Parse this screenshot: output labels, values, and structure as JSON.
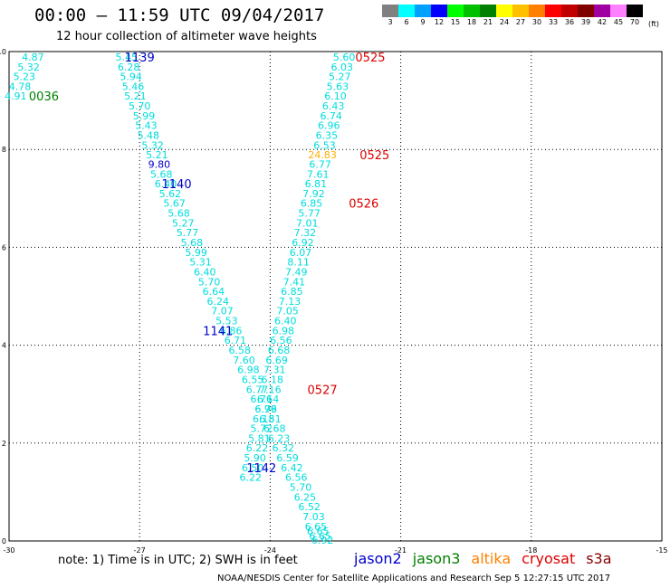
{
  "title": "00:00 – 11:59 UTC 09/04/2017",
  "subtitle": "12 hour collection of altimeter wave heights",
  "colorbar": {
    "unit": "(ft)",
    "cells": [
      {
        "label": "3",
        "color": "#808080"
      },
      {
        "label": "6",
        "color": "#00ffff"
      },
      {
        "label": "9",
        "color": "#00a0ff"
      },
      {
        "label": "12",
        "color": "#0000ff"
      },
      {
        "label": "15",
        "color": "#00ff00"
      },
      {
        "label": "18",
        "color": "#00c000"
      },
      {
        "label": "21",
        "color": "#008000"
      },
      {
        "label": "24",
        "color": "#ffff00"
      },
      {
        "label": "27",
        "color": "#ffc000"
      },
      {
        "label": "30",
        "color": "#ff8000"
      },
      {
        "label": "33",
        "color": "#ff0000"
      },
      {
        "label": "36",
        "color": "#c00000"
      },
      {
        "label": "39",
        "color": "#800000"
      },
      {
        "label": "42",
        "color": "#a000a0"
      },
      {
        "label": "45",
        "color": "#ff80ff"
      },
      {
        "label": "70",
        "color": "#000000"
      }
    ]
  },
  "note": "note: 1) Time is in UTC; 2) SWH is in feet",
  "legend": [
    {
      "name": "jason2",
      "color": "#0000cc"
    },
    {
      "name": "jason3",
      "color": "#008000"
    },
    {
      "name": "altika",
      "color": "#ff8000"
    },
    {
      "name": "cryosat",
      "color": "#dd0000"
    },
    {
      "name": "s3a",
      "color": "#880000"
    }
  ],
  "footer": "NOAA/NESDIS Center for Satellite Applications and Research   Sep  5 12:27:15 UTC 2017",
  "chart_data": {
    "type": "scatter",
    "title": "00:00 – 11:59 UTC 09/04/2017",
    "xlim": [
      -30,
      -15
    ],
    "ylim": [
      0,
      10
    ],
    "xticks": [
      "-30",
      "-27",
      "-24",
      "-21",
      "-18",
      "-15"
    ],
    "yticks": [
      "0",
      "2",
      "4",
      "6",
      "8",
      "10"
    ],
    "grid": true,
    "series": [
      {
        "name": "jason3",
        "color": "#00dddd",
        "points": [
          {
            "x": -29.45,
            "y": 9.89,
            "v": "4.87"
          },
          {
            "x": -29.55,
            "y": 9.69,
            "v": "5.32"
          },
          {
            "x": -29.65,
            "y": 9.49,
            "v": "5.23"
          },
          {
            "x": -29.75,
            "y": 9.29,
            "v": "4.78"
          },
          {
            "x": -29.85,
            "y": 9.09,
            "v": "4.91"
          }
        ]
      },
      {
        "name": "jason2",
        "color": "#00dddd",
        "points": [
          {
            "x": -27.3,
            "y": 9.89,
            "v": "5.45"
          },
          {
            "x": -27.25,
            "y": 9.69,
            "v": "6.28"
          },
          {
            "x": -27.2,
            "y": 9.49,
            "v": "5.94"
          },
          {
            "x": -27.15,
            "y": 9.29,
            "v": "5.46"
          },
          {
            "x": -27.1,
            "y": 9.09,
            "v": "5.21"
          },
          {
            "x": -27.0,
            "y": 8.89,
            "v": "5.70"
          },
          {
            "x": -26.9,
            "y": 8.69,
            "v": "5.99"
          },
          {
            "x": -26.85,
            "y": 8.49,
            "v": "5.43"
          },
          {
            "x": -26.8,
            "y": 8.29,
            "v": "5.48"
          },
          {
            "x": -26.7,
            "y": 8.09,
            "v": "5.32"
          },
          {
            "x": -26.6,
            "y": 7.89,
            "v": "5.21"
          },
          {
            "x": -26.55,
            "y": 7.7,
            "v": "9.80",
            "c": "#0000cc"
          },
          {
            "x": -26.5,
            "y": 7.5,
            "v": "5.68"
          },
          {
            "x": -26.4,
            "y": 7.3,
            "v": "6.40"
          },
          {
            "x": -26.3,
            "y": 7.1,
            "v": "5.62"
          },
          {
            "x": -26.2,
            "y": 6.9,
            "v": "5.67"
          },
          {
            "x": -26.1,
            "y": 6.7,
            "v": "5.68"
          },
          {
            "x": -26.0,
            "y": 6.5,
            "v": "5.27"
          },
          {
            "x": -25.9,
            "y": 6.3,
            "v": "5.77"
          },
          {
            "x": -25.8,
            "y": 6.1,
            "v": "5.68"
          },
          {
            "x": -25.7,
            "y": 5.9,
            "v": "5.99"
          },
          {
            "x": -25.6,
            "y": 5.7,
            "v": "5.31"
          },
          {
            "x": -25.5,
            "y": 5.5,
            "v": "6.40"
          },
          {
            "x": -25.4,
            "y": 5.3,
            "v": "5.70"
          },
          {
            "x": -25.3,
            "y": 5.1,
            "v": "6.64"
          },
          {
            "x": -25.2,
            "y": 4.9,
            "v": "6.24"
          },
          {
            "x": -25.1,
            "y": 4.7,
            "v": "7.07"
          },
          {
            "x": -25.0,
            "y": 4.5,
            "v": "5.53"
          },
          {
            "x": -24.9,
            "y": 4.3,
            "v": "6.86"
          },
          {
            "x": -24.8,
            "y": 4.1,
            "v": "6.71"
          },
          {
            "x": -24.7,
            "y": 3.9,
            "v": "6.58"
          },
          {
            "x": -24.6,
            "y": 3.7,
            "v": "7.60"
          },
          {
            "x": -24.5,
            "y": 3.5,
            "v": "6.98"
          },
          {
            "x": -24.4,
            "y": 3.3,
            "v": "6.55"
          },
          {
            "x": -24.3,
            "y": 3.1,
            "v": "6.77"
          },
          {
            "x": -24.2,
            "y": 2.9,
            "v": "6.76"
          },
          {
            "x": -24.1,
            "y": 2.7,
            "v": "6.76"
          },
          {
            "x": -24.0,
            "y": 2.5,
            "v": "6.51"
          },
          {
            "x": -23.9,
            "y": 2.3,
            "v": "6.68"
          },
          {
            "x": -23.8,
            "y": 2.1,
            "v": "6.23"
          },
          {
            "x": -23.7,
            "y": 1.9,
            "v": "6.32"
          },
          {
            "x": -23.6,
            "y": 1.7,
            "v": "6.59"
          },
          {
            "x": -23.5,
            "y": 1.5,
            "v": "6.42"
          },
          {
            "x": -23.4,
            "y": 1.3,
            "v": "6.56"
          },
          {
            "x": -23.3,
            "y": 1.1,
            "v": "5.70"
          },
          {
            "x": -23.2,
            "y": 0.9,
            "v": "6.25"
          },
          {
            "x": -23.1,
            "y": 0.7,
            "v": "6.52"
          },
          {
            "x": -23.0,
            "y": 0.5,
            "v": "7.03"
          },
          {
            "x": -22.95,
            "y": 0.3,
            "v": "6.65"
          },
          {
            "x": -22.9,
            "y": 0.2,
            "v": "6.65"
          },
          {
            "x": -22.85,
            "y": 0.1,
            "v": "6.65"
          },
          {
            "x": -22.8,
            "y": 0.02,
            "v": "6.92"
          }
        ]
      },
      {
        "name": "cryosat",
        "color": "#00dddd",
        "points": [
          {
            "x": -22.3,
            "y": 9.89,
            "v": "5.60"
          },
          {
            "x": -22.35,
            "y": 9.69,
            "v": "6.03"
          },
          {
            "x": -22.4,
            "y": 9.49,
            "v": "5.27"
          },
          {
            "x": -22.45,
            "y": 9.29,
            "v": "5.63"
          },
          {
            "x": -22.5,
            "y": 9.09,
            "v": "6.10"
          },
          {
            "x": -22.55,
            "y": 8.89,
            "v": "6.43"
          },
          {
            "x": -22.6,
            "y": 8.69,
            "v": "6.74"
          },
          {
            "x": -22.65,
            "y": 8.49,
            "v": "6.96"
          },
          {
            "x": -22.7,
            "y": 8.29,
            "v": "6.35"
          },
          {
            "x": -22.75,
            "y": 8.09,
            "v": "6.53"
          },
          {
            "x": -22.8,
            "y": 7.89,
            "v": "24.83",
            "c": "#ffb000"
          },
          {
            "x": -22.85,
            "y": 7.7,
            "v": "6.77"
          },
          {
            "x": -22.9,
            "y": 7.5,
            "v": "7.61"
          },
          {
            "x": -22.95,
            "y": 7.3,
            "v": "6.81"
          },
          {
            "x": -23.0,
            "y": 7.1,
            "v": "7.92"
          },
          {
            "x": -23.05,
            "y": 6.9,
            "v": "6.85"
          },
          {
            "x": -23.1,
            "y": 6.7,
            "v": "5.77"
          },
          {
            "x": -23.15,
            "y": 6.5,
            "v": "7.01"
          },
          {
            "x": -23.2,
            "y": 6.3,
            "v": "7.32"
          },
          {
            "x": -23.25,
            "y": 6.1,
            "v": "6.92"
          },
          {
            "x": -23.3,
            "y": 5.9,
            "v": "6.07"
          },
          {
            "x": -23.35,
            "y": 5.7,
            "v": "8.11"
          },
          {
            "x": -23.4,
            "y": 5.5,
            "v": "7.49"
          },
          {
            "x": -23.45,
            "y": 5.3,
            "v": "7.41"
          },
          {
            "x": -23.5,
            "y": 5.1,
            "v": "6.85"
          },
          {
            "x": -23.55,
            "y": 4.9,
            "v": "7.13"
          },
          {
            "x": -23.6,
            "y": 4.7,
            "v": "7.05"
          },
          {
            "x": -23.65,
            "y": 4.5,
            "v": "6.40"
          },
          {
            "x": -23.7,
            "y": 4.3,
            "v": "6.98"
          },
          {
            "x": -23.75,
            "y": 4.1,
            "v": "6.56"
          },
          {
            "x": -23.8,
            "y": 3.9,
            "v": "6.68"
          },
          {
            "x": -23.85,
            "y": 3.7,
            "v": "6.69"
          },
          {
            "x": -23.9,
            "y": 3.5,
            "v": "7.31"
          },
          {
            "x": -23.95,
            "y": 3.3,
            "v": "6.18"
          },
          {
            "x": -24.0,
            "y": 3.1,
            "v": "7.16"
          },
          {
            "x": -24.05,
            "y": 2.9,
            "v": "6.14"
          },
          {
            "x": -24.1,
            "y": 2.7,
            "v": "6.99"
          },
          {
            "x": -24.15,
            "y": 2.5,
            "v": "6.18"
          },
          {
            "x": -24.2,
            "y": 2.3,
            "v": "5.72"
          },
          {
            "x": -24.25,
            "y": 2.1,
            "v": "5.81"
          },
          {
            "x": -24.3,
            "y": 1.9,
            "v": "6.22"
          },
          {
            "x": -24.35,
            "y": 1.7,
            "v": "5.90"
          },
          {
            "x": -24.4,
            "y": 1.5,
            "v": "6.50"
          },
          {
            "x": -24.45,
            "y": 1.3,
            "v": "6.22"
          }
        ]
      }
    ],
    "annotations": [
      {
        "text": "0036",
        "x": -29.2,
        "y": 9.09,
        "color": "#008000"
      },
      {
        "text": "1139",
        "x": -27.0,
        "y": 9.89,
        "color": "#0000cc"
      },
      {
        "text": "1140",
        "x": -26.15,
        "y": 7.3,
        "color": "#0000cc"
      },
      {
        "text": "1141",
        "x": -25.2,
        "y": 4.3,
        "color": "#0000cc"
      },
      {
        "text": "1142",
        "x": -24.2,
        "y": 1.5,
        "color": "#0000cc"
      },
      {
        "text": "0525",
        "x": -21.7,
        "y": 9.89,
        "color": "#dd0000"
      },
      {
        "text": "0525",
        "x": -21.6,
        "y": 7.89,
        "color": "#dd0000"
      },
      {
        "text": "0526",
        "x": -21.85,
        "y": 6.9,
        "color": "#dd0000"
      },
      {
        "text": "0527",
        "x": -22.8,
        "y": 3.1,
        "color": "#dd0000"
      }
    ]
  }
}
